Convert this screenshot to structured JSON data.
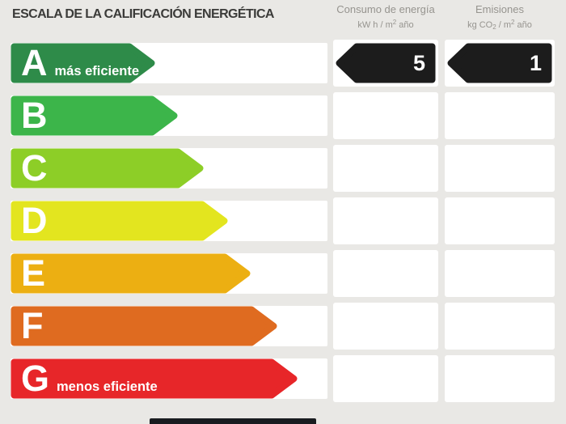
{
  "title": "ESCALA DE LA CALIFICACIÓN ENERGÉTICA",
  "theme": {
    "background": "#E9E8E5",
    "row_background": "#FFFFFF",
    "value_arrow_color": "#1C1C1C",
    "title_color": "#3B3B39",
    "header_color": "#96948F"
  },
  "columns": [
    {
      "title": "Consumo de energía",
      "unit": {
        "pre": "kW h / m",
        "sup": "2",
        "post": " año"
      }
    },
    {
      "title": "Emisiones",
      "unit": {
        "pre": "kg CO",
        "sub": "2",
        "mid": " / m",
        "sup": "2",
        "post": " año"
      }
    }
  ],
  "ratings": [
    {
      "letter": "A",
      "label": "más eficiente",
      "color": "#2E8B49",
      "arrow_width": 179,
      "consumo": "5",
      "emisiones": "1"
    },
    {
      "letter": "B",
      "label": "",
      "color": "#3CB54A",
      "arrow_width": 207,
      "consumo": "",
      "emisiones": ""
    },
    {
      "letter": "C",
      "label": "",
      "color": "#8DCE27",
      "arrow_width": 239,
      "consumo": "",
      "emisiones": ""
    },
    {
      "letter": "D",
      "label": "",
      "color": "#E3E51F",
      "arrow_width": 269,
      "consumo": "",
      "emisiones": ""
    },
    {
      "letter": "E",
      "label": "",
      "color": "#ECAF12",
      "arrow_width": 297,
      "consumo": "",
      "emisiones": ""
    },
    {
      "letter": "F",
      "label": "",
      "color": "#DF6B20",
      "arrow_width": 330,
      "consumo": "",
      "emisiones": ""
    },
    {
      "letter": "G",
      "label": "menos eficiente",
      "color": "#E72629",
      "arrow_width": 355,
      "consumo": "",
      "emisiones": ""
    }
  ],
  "chart_data": {
    "type": "bar",
    "title": "ESCALA DE LA CALIFICACIÓN ENERGÉTICA",
    "categories": [
      "A",
      "B",
      "C",
      "D",
      "E",
      "F",
      "G"
    ],
    "values": [
      179,
      207,
      239,
      269,
      297,
      330,
      355
    ],
    "values_note": "decorative bar lengths in px, fixed rating-scale steps",
    "bar_colors": [
      "#2E8B49",
      "#3CB54A",
      "#8DCE27",
      "#E3E51F",
      "#ECAF12",
      "#DF6B20",
      "#E72629"
    ],
    "annotations": [
      "A: más eficiente",
      "G: menos eficiente"
    ],
    "selected_rating": "A",
    "consumo_energia": {
      "label": "Consumo de energía",
      "unit": "kW h / m² año",
      "value": 5
    },
    "emisiones": {
      "label": "Emisiones",
      "unit": "kg CO₂ / m² año",
      "value": 1
    },
    "legend_position": "none",
    "grid": false
  }
}
